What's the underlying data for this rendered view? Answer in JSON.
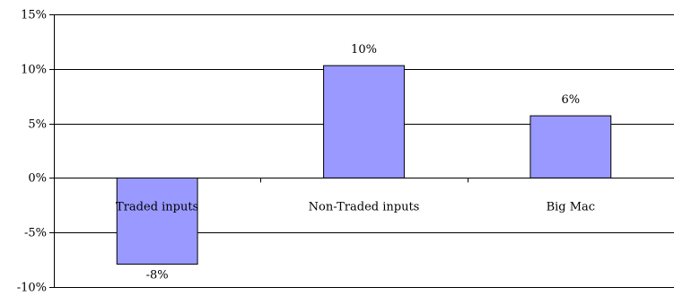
{
  "chart_data": {
    "type": "bar",
    "categories": [
      "Traded inputs",
      "Non-Traded inputs",
      "Big Mac"
    ],
    "values": [
      -7.9,
      10.3,
      5.7
    ],
    "data_labels": [
      "-8%",
      "10%",
      "6%"
    ],
    "title": "",
    "xlabel": "",
    "ylabel": "",
    "ylim": [
      -10,
      15
    ],
    "y_ticks": [
      15,
      10,
      5,
      0,
      -5,
      -10
    ],
    "y_tick_labels": [
      "15%",
      "10%",
      "5%",
      "0%",
      "-5%",
      "-10%"
    ],
    "grid": true,
    "legend": "none",
    "colors": {
      "bar_fill": "#9999ff",
      "bar_stroke": "#000000",
      "axis": "#000000",
      "gridline": "#000000"
    }
  }
}
